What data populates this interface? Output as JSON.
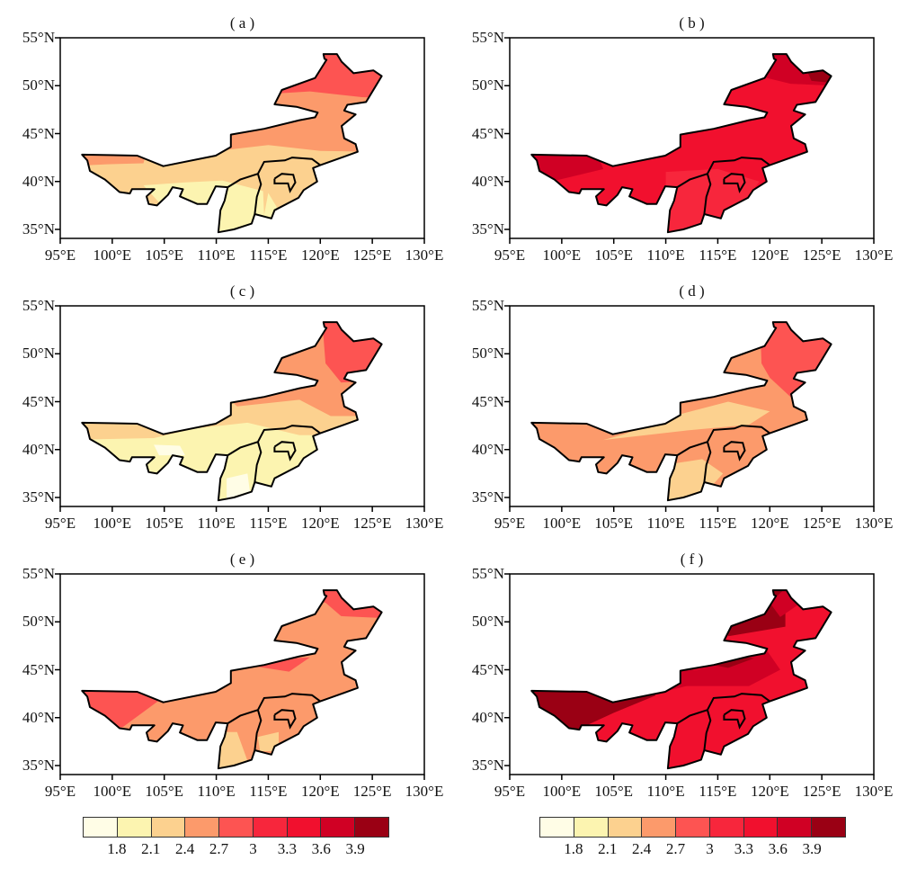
{
  "panels": [
    {
      "id": "a",
      "title": "( a )"
    },
    {
      "id": "b",
      "title": "( b )"
    },
    {
      "id": "c",
      "title": "( c )"
    },
    {
      "id": "d",
      "title": "( d )"
    },
    {
      "id": "e",
      "title": "( e )"
    },
    {
      "id": "f",
      "title": "( f )"
    }
  ],
  "axes": {
    "lon_range": [
      95,
      130
    ],
    "lat_range": [
      34,
      55
    ],
    "x_ticks": [
      {
        "v": 95,
        "label": "95°E"
      },
      {
        "v": 100,
        "label": "100°E"
      },
      {
        "v": 105,
        "label": "105°E"
      },
      {
        "v": 110,
        "label": "110°E"
      },
      {
        "v": 115,
        "label": "115°E"
      },
      {
        "v": 120,
        "label": "120°E"
      },
      {
        "v": 125,
        "label": "125°E"
      },
      {
        "v": 130,
        "label": "130°E"
      }
    ],
    "y_ticks": [
      {
        "v": 35,
        "label": "35°N"
      },
      {
        "v": 40,
        "label": "40°N"
      },
      {
        "v": 45,
        "label": "45°N"
      },
      {
        "v": 50,
        "label": "50°N"
      },
      {
        "v": 55,
        "label": "55°N"
      }
    ]
  },
  "colorbar": {
    "colors": [
      "#fffde6",
      "#fcf4b0",
      "#fcd18f",
      "#fc9a6b",
      "#fd5452",
      "#f7263c",
      "#f1102e",
      "#d00024",
      "#9a0014"
    ],
    "labels": [
      "1.8",
      "2.1",
      "2.4",
      "2.7",
      "3",
      "3.3",
      "3.6",
      "3.9"
    ]
  }
}
